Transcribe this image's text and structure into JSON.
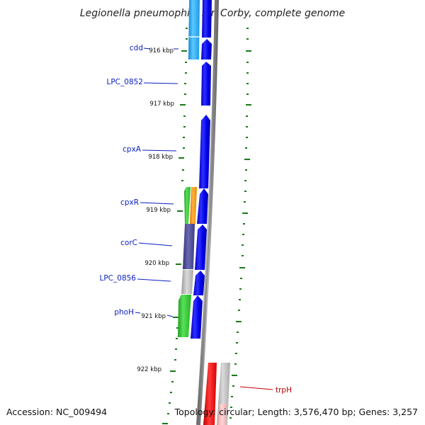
{
  "title": "Legionella pneumophila str. Corby, complete genome",
  "footer": {
    "accession": "Accession: NC_009494",
    "summary": "Topology: circular; Length: 3,576,470 bp; Genes: 3,257"
  },
  "ticks": [
    "916 kbp",
    "917 kbp",
    "918 kbp",
    "919 kbp",
    "920 kbp",
    "921 kbp",
    "922 kbp"
  ],
  "genes": [
    {
      "name": "cdd",
      "color": "#2aa0ee"
    },
    {
      "name": "LPC_0852",
      "color": "#0000e6"
    },
    {
      "name": "cpxA",
      "color": "#0000e6"
    },
    {
      "name": "cpxR",
      "color": "#2ec82e"
    },
    {
      "name": "corC",
      "color": "#454592"
    },
    {
      "name": "LPC_0856",
      "color": "#b0b0b0"
    },
    {
      "name": "phoH",
      "color": "#2ec82e"
    },
    {
      "name": "trpH",
      "color": "#e00000"
    }
  ],
  "colors": {
    "forward_cds": "#0000e6",
    "backbone": "#808080",
    "tick_green": "#1a7a1a",
    "label_blue": "#0a1fbf",
    "label_red": "#c00000"
  }
}
